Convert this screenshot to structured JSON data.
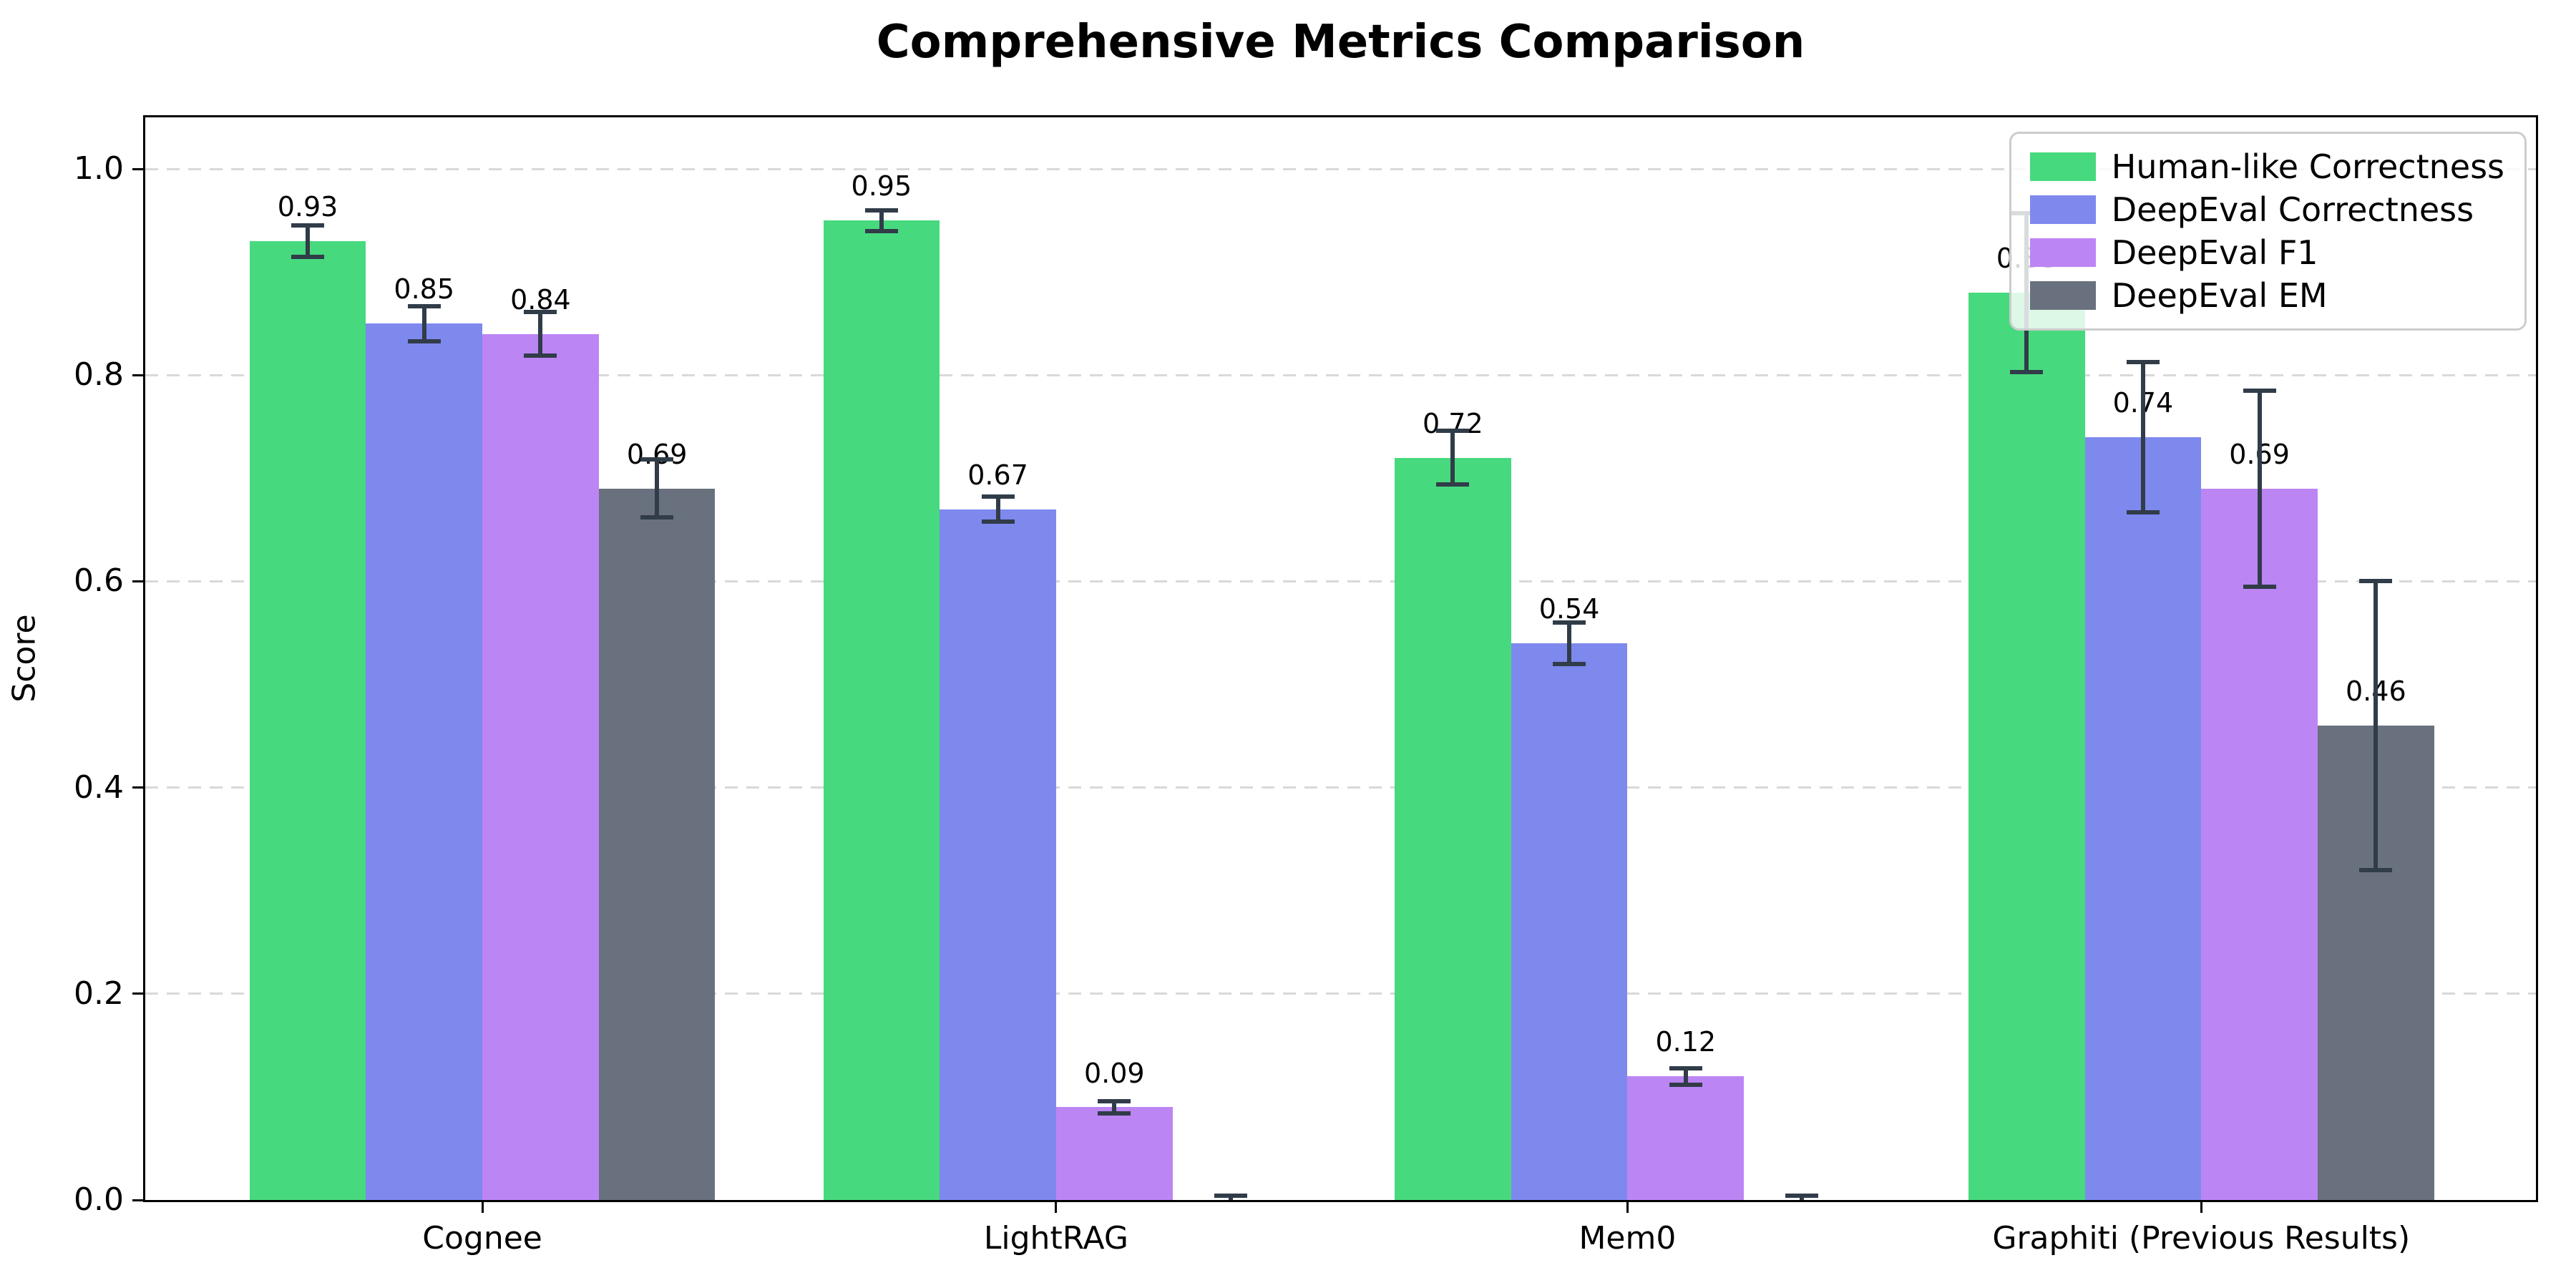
{
  "title": "Comprehensive Metrics Comparison",
  "chart_data": {
    "type": "bar",
    "title": "Comprehensive Metrics Comparison",
    "xlabel": "",
    "ylabel": "Score",
    "categories": [
      "Cognee",
      "LightRAG",
      "Mem0",
      "Graphiti (Previous Results)"
    ],
    "series": [
      {
        "name": "Human-like Correctness",
        "color": "#47D97E",
        "values": [
          0.93,
          0.95,
          0.72,
          0.88
        ],
        "errors": [
          0.015,
          0.01,
          0.026,
          0.077
        ],
        "labels": [
          "0.93",
          "0.95",
          "0.72",
          "0.88"
        ]
      },
      {
        "name": "DeepEval Correctness",
        "color": "#7E89EE",
        "values": [
          0.85,
          0.67,
          0.54,
          0.74
        ],
        "errors": [
          0.017,
          0.012,
          0.02,
          0.073
        ],
        "labels": [
          "0.85",
          "0.67",
          "0.54",
          "0.74"
        ]
      },
      {
        "name": "DeepEval F1",
        "color": "#BC85F4",
        "values": [
          0.84,
          0.09,
          0.12,
          0.69
        ],
        "errors": [
          0.021,
          0.006,
          0.008,
          0.095
        ],
        "labels": [
          "0.84",
          "0.09",
          "0.12",
          "0.69"
        ]
      },
      {
        "name": "DeepEval EM",
        "color": "#6A717E",
        "values": [
          0.69,
          0.0,
          0.0,
          0.46
        ],
        "errors": [
          0.028,
          0.004,
          0.004,
          0.14
        ],
        "labels": [
          "0.69",
          null,
          null,
          "0.46"
        ]
      }
    ],
    "yticks": [
      "0.0",
      "0.2",
      "0.4",
      "0.6",
      "0.8",
      "1.0"
    ],
    "ylim": [
      0,
      1.05
    ],
    "grid": "dashed-horizontal",
    "legend_position": "upper-right",
    "layout": {
      "group_centers_frac": [
        0.141,
        0.381,
        0.62,
        0.86
      ],
      "bar_width_frac": 0.0487,
      "label_offset_units": 0.02
    }
  }
}
